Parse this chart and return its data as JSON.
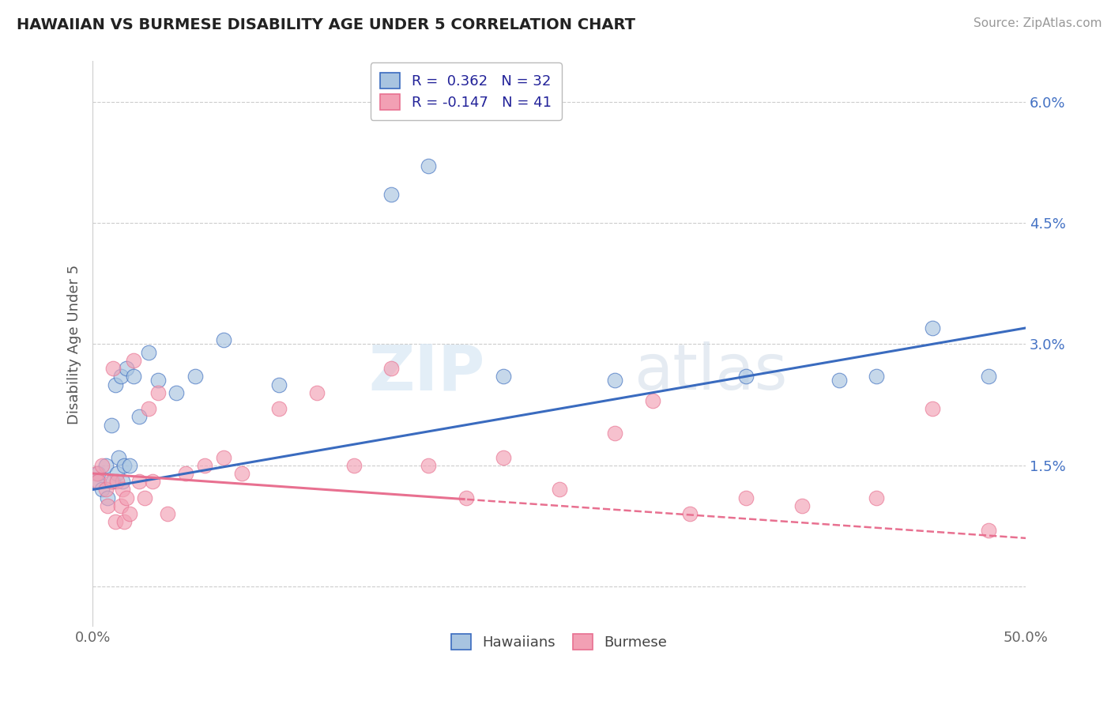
{
  "title": "HAWAIIAN VS BURMESE DISABILITY AGE UNDER 5 CORRELATION CHART",
  "source": "Source: ZipAtlas.com",
  "ylabel": "Disability Age Under 5",
  "xlim": [
    0.0,
    50.0
  ],
  "ylim_low": -0.5,
  "ylim_high": 6.5,
  "yticks": [
    0.0,
    1.5,
    3.0,
    4.5,
    6.0
  ],
  "ytick_labels": [
    "",
    "1.5%",
    "3.0%",
    "4.5%",
    "6.0%"
  ],
  "xtick_labels": [
    "0.0%",
    "50.0%"
  ],
  "hawaiian_R": "0.362",
  "hawaiian_N": "32",
  "burmese_R": "-0.147",
  "burmese_N": "41",
  "hawaiian_scatter_color": "#a8c4e0",
  "hawaiian_line_color": "#3a6bbf",
  "burmese_scatter_color": "#f2a0b4",
  "burmese_line_color": "#e87090",
  "grid_color": "#cccccc",
  "background": "#ffffff",
  "hawaiian_x": [
    0.2,
    0.3,
    0.5,
    0.7,
    0.8,
    1.0,
    1.1,
    1.2,
    1.3,
    1.4,
    1.5,
    1.6,
    1.7,
    1.8,
    2.0,
    2.2,
    2.5,
    3.0,
    3.5,
    4.5,
    5.5,
    7.0,
    10.0,
    16.0,
    18.0,
    22.0,
    28.0,
    35.0,
    40.0,
    42.0,
    45.0,
    48.0
  ],
  "hawaiian_y": [
    1.3,
    1.4,
    1.2,
    1.5,
    1.1,
    2.0,
    1.3,
    2.5,
    1.4,
    1.6,
    2.6,
    1.3,
    1.5,
    2.7,
    1.5,
    2.6,
    2.1,
    2.9,
    2.55,
    2.4,
    2.6,
    3.05,
    2.5,
    4.85,
    5.2,
    2.6,
    2.55,
    2.6,
    2.55,
    2.6,
    3.2,
    2.6
  ],
  "burmese_x": [
    0.2,
    0.3,
    0.5,
    0.7,
    0.8,
    1.0,
    1.1,
    1.2,
    1.3,
    1.5,
    1.6,
    1.7,
    1.8,
    2.0,
    2.2,
    2.5,
    2.8,
    3.0,
    3.2,
    3.5,
    4.0,
    5.0,
    6.0,
    7.0,
    8.0,
    10.0,
    12.0,
    14.0,
    16.0,
    18.0,
    20.0,
    22.0,
    25.0,
    28.0,
    30.0,
    32.0,
    35.0,
    38.0,
    42.0,
    45.0,
    48.0
  ],
  "burmese_y": [
    1.4,
    1.3,
    1.5,
    1.2,
    1.0,
    1.3,
    2.7,
    0.8,
    1.3,
    1.0,
    1.2,
    0.8,
    1.1,
    0.9,
    2.8,
    1.3,
    1.1,
    2.2,
    1.3,
    2.4,
    0.9,
    1.4,
    1.5,
    1.6,
    1.4,
    2.2,
    2.4,
    1.5,
    2.7,
    1.5,
    1.1,
    1.6,
    1.2,
    1.9,
    2.3,
    0.9,
    1.1,
    1.0,
    1.1,
    2.2,
    0.7
  ]
}
